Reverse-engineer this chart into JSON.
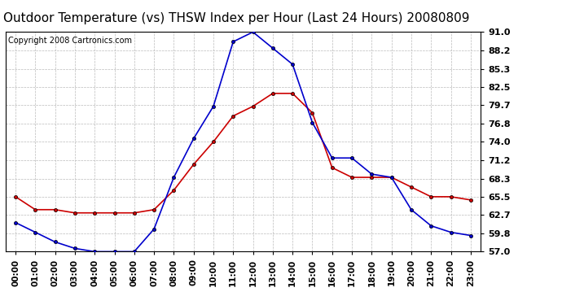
{
  "title": "Outdoor Temperature (vs) THSW Index per Hour (Last 24 Hours) 20080809",
  "copyright": "Copyright 2008 Cartronics.com",
  "hours": [
    "00:00",
    "01:00",
    "02:00",
    "03:00",
    "04:00",
    "05:00",
    "06:00",
    "07:00",
    "08:00",
    "09:00",
    "10:00",
    "11:00",
    "12:00",
    "13:00",
    "14:00",
    "15:00",
    "16:00",
    "17:00",
    "18:00",
    "19:00",
    "20:00",
    "21:00",
    "22:00",
    "23:00"
  ],
  "outdoor_temp": [
    65.5,
    63.5,
    63.5,
    63.0,
    63.0,
    63.0,
    63.0,
    63.5,
    66.5,
    70.5,
    74.0,
    78.0,
    79.5,
    81.5,
    81.5,
    78.5,
    70.0,
    68.5,
    68.5,
    68.5,
    67.0,
    65.5,
    65.5,
    65.0
  ],
  "thsw_index": [
    61.5,
    60.0,
    58.5,
    57.5,
    57.0,
    57.0,
    57.0,
    60.5,
    68.5,
    74.5,
    79.5,
    89.5,
    91.0,
    88.5,
    86.0,
    77.0,
    71.5,
    71.5,
    69.0,
    68.5,
    63.5,
    61.0,
    60.0,
    59.5
  ],
  "ylim": [
    57.0,
    91.0
  ],
  "yticks": [
    57.0,
    59.8,
    62.7,
    65.5,
    68.3,
    71.2,
    74.0,
    76.8,
    79.7,
    82.5,
    85.3,
    88.2,
    91.0
  ],
  "temp_color": "#cc0000",
  "thsw_color": "#0000cc",
  "bg_color": "#ffffff",
  "grid_color": "#bbbbbb",
  "title_fontsize": 11,
  "copyright_fontsize": 7
}
